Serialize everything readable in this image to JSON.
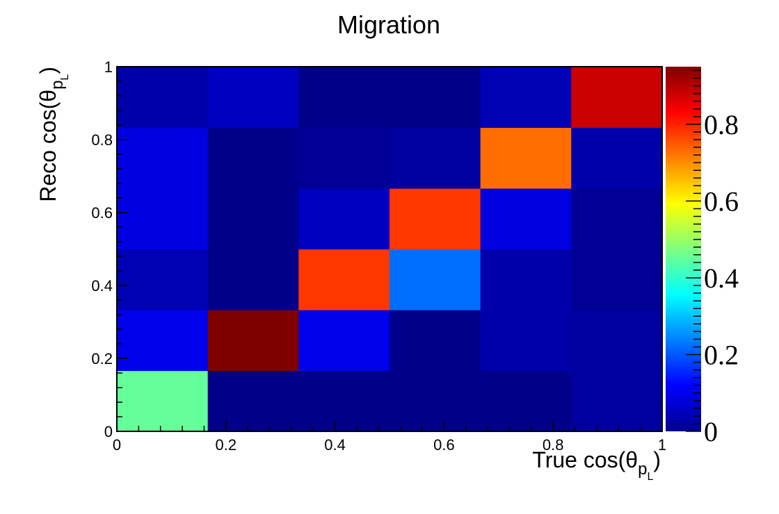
{
  "chart_data": {
    "type": "heatmap",
    "title": "Migration",
    "xlabel": "True cos(θ_p_L)",
    "ylabel": "Reco cos(θ_p_L)",
    "xlabel_parts": {
      "main": "True cos(θ",
      "sub": "p",
      "subsub": "L",
      "close": ")"
    },
    "ylabel_parts": {
      "main": "Reco cos(θ",
      "sub": "p",
      "subsub": "L",
      "close": ")"
    },
    "x_bin_edges": [
      0,
      0.1667,
      0.3333,
      0.5,
      0.6667,
      0.8333,
      1
    ],
    "y_bin_edges": [
      0,
      0.1667,
      0.3333,
      0.5,
      0.6667,
      0.8333,
      1
    ],
    "xlim": [
      0,
      1
    ],
    "ylim": [
      0,
      1
    ],
    "x_ticks": [
      0,
      0.2,
      0.4,
      0.6,
      0.8,
      1
    ],
    "x_tick_labels": [
      "0",
      "0.2",
      "0.4",
      "0.6",
      "0.8",
      "1"
    ],
    "y_ticks": [
      0,
      0.2,
      0.4,
      0.6,
      0.8,
      1
    ],
    "y_tick_labels": [
      "0",
      "0.2",
      "0.4",
      "0.6",
      "0.8",
      "1"
    ],
    "values_rows_bottom_to_top": [
      [
        0.45,
        0.01,
        0.01,
        0.01,
        0.01,
        0.03
      ],
      [
        0.1,
        0.95,
        0.1,
        0.01,
        0.04,
        0.03
      ],
      [
        0.05,
        0.01,
        0.78,
        0.22,
        0.04,
        0.02
      ],
      [
        0.09,
        0.01,
        0.06,
        0.78,
        0.09,
        0.02
      ],
      [
        0.09,
        0.01,
        0.02,
        0.03,
        0.73,
        0.04
      ],
      [
        0.04,
        0.06,
        0.01,
        0.01,
        0.05,
        0.88
      ]
    ],
    "colorbar": {
      "range": [
        0,
        0.95
      ],
      "ticks": [
        0,
        0.2,
        0.4,
        0.6,
        0.8
      ],
      "tick_labels": [
        "0",
        "0.2",
        "0.4",
        "0.6",
        "0.8"
      ],
      "colormap": "jet"
    },
    "grid": false
  }
}
